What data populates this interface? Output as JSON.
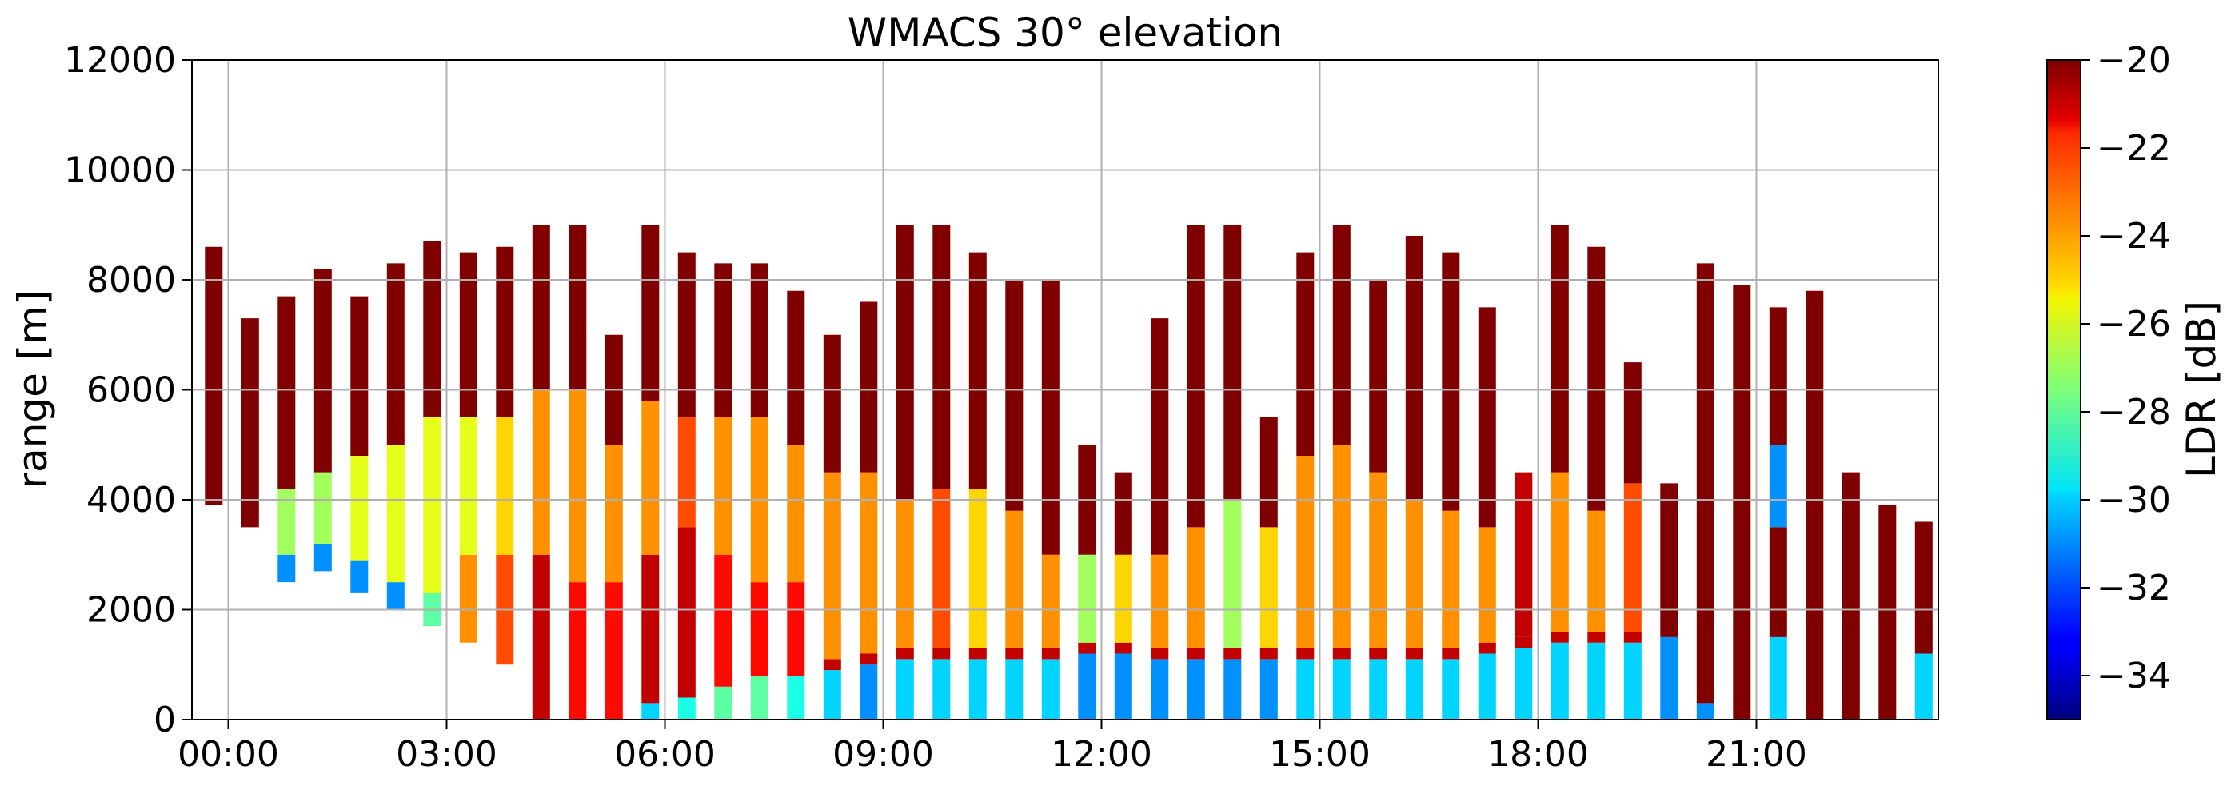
{
  "chart_data": {
    "type": "heatmap",
    "title": "WMACS 30° elevation",
    "xlabel": "",
    "ylabel": "range [m]",
    "ylim": [
      0,
      12000
    ],
    "xlim_hours": [
      -0.5,
      23.5
    ],
    "x_tick_labels": [
      "00:00",
      "03:00",
      "06:00",
      "09:00",
      "12:00",
      "15:00",
      "18:00",
      "21:00"
    ],
    "x_tick_hours": [
      0,
      3,
      6,
      9,
      12,
      15,
      18,
      21
    ],
    "y_ticks": [
      0,
      2000,
      4000,
      6000,
      8000,
      10000,
      12000
    ],
    "y_tick_labels": [
      "0",
      "2000",
      "4000",
      "6000",
      "8000",
      "10000",
      "12000"
    ],
    "grid": true,
    "colorbar": {
      "label": "LDR [dB]",
      "range": [
        -35,
        -20
      ],
      "ticks": [
        -20,
        -22,
        -24,
        -26,
        -28,
        -30,
        -32,
        -34
      ],
      "tick_labels": [
        "−20",
        "−22",
        "−24",
        "−26",
        "−28",
        "−30",
        "−32",
        "−34"
      ],
      "colormap": "jet"
    },
    "scans": [
      {
        "t": -0.2,
        "top": 8600,
        "bottom": 3900,
        "layers": [
          [
            3900,
            8600,
            -20
          ]
        ]
      },
      {
        "t": 0.3,
        "top": 7300,
        "bottom": 3500,
        "layers": [
          [
            3500,
            7300,
            -20
          ]
        ]
      },
      {
        "t": 0.8,
        "top": 7700,
        "bottom": 2500,
        "layers": [
          [
            2500,
            3000,
            -31
          ],
          [
            3000,
            4200,
            -27
          ],
          [
            4200,
            7700,
            -20
          ]
        ]
      },
      {
        "t": 1.3,
        "top": 8200,
        "bottom": 2700,
        "layers": [
          [
            2700,
            3200,
            -31
          ],
          [
            3200,
            4500,
            -27
          ],
          [
            4500,
            8200,
            -20
          ]
        ]
      },
      {
        "t": 1.8,
        "top": 7700,
        "bottom": 2300,
        "layers": [
          [
            2300,
            2900,
            -31
          ],
          [
            2900,
            4800,
            -26
          ],
          [
            4800,
            7700,
            -20
          ]
        ]
      },
      {
        "t": 2.3,
        "top": 8300,
        "bottom": 2000,
        "layers": [
          [
            2000,
            2500,
            -31
          ],
          [
            2500,
            5000,
            -26
          ],
          [
            5000,
            8300,
            -20
          ]
        ]
      },
      {
        "t": 2.8,
        "top": 8700,
        "bottom": 1700,
        "layers": [
          [
            1700,
            2300,
            -28
          ],
          [
            2300,
            5500,
            -26
          ],
          [
            5500,
            8700,
            -20
          ]
        ]
      },
      {
        "t": 3.3,
        "top": 8500,
        "bottom": 1400,
        "layers": [
          [
            1400,
            3000,
            -24
          ],
          [
            3000,
            5500,
            -26
          ],
          [
            5500,
            8500,
            -20
          ]
        ]
      },
      {
        "t": 3.8,
        "top": 8600,
        "bottom": 1000,
        "layers": [
          [
            1000,
            3000,
            -23
          ],
          [
            3000,
            5500,
            -25
          ],
          [
            5500,
            8600,
            -20
          ]
        ]
      },
      {
        "t": 4.3,
        "top": 9000,
        "bottom": 0,
        "layers": [
          [
            0,
            3000,
            -21
          ],
          [
            3000,
            6000,
            -24
          ],
          [
            6000,
            9000,
            -20
          ]
        ]
      },
      {
        "t": 4.8,
        "top": 9000,
        "bottom": 0,
        "layers": [
          [
            0,
            2500,
            -22
          ],
          [
            2500,
            6000,
            -24
          ],
          [
            6000,
            9000,
            -20
          ]
        ]
      },
      {
        "t": 5.3,
        "top": 7000,
        "bottom": 0,
        "layers": [
          [
            0,
            2500,
            -22
          ],
          [
            2500,
            5000,
            -24
          ],
          [
            5000,
            7000,
            -20
          ]
        ]
      },
      {
        "t": 5.8,
        "top": 9000,
        "bottom": 0,
        "layers": [
          [
            0,
            300,
            -30
          ],
          [
            300,
            3000,
            -21
          ],
          [
            3000,
            5800,
            -24
          ],
          [
            5800,
            9000,
            -20
          ]
        ]
      },
      {
        "t": 6.3,
        "top": 8500,
        "bottom": 0,
        "layers": [
          [
            0,
            400,
            -29
          ],
          [
            400,
            3500,
            -21
          ],
          [
            3500,
            5500,
            -23
          ],
          [
            5500,
            8500,
            -20
          ]
        ]
      },
      {
        "t": 6.8,
        "top": 8300,
        "bottom": 0,
        "layers": [
          [
            0,
            600,
            -28
          ],
          [
            600,
            3000,
            -22
          ],
          [
            3000,
            5500,
            -24
          ],
          [
            5500,
            8300,
            -20
          ]
        ]
      },
      {
        "t": 7.3,
        "top": 8300,
        "bottom": 0,
        "layers": [
          [
            0,
            800,
            -28
          ],
          [
            800,
            2500,
            -22
          ],
          [
            2500,
            5500,
            -24
          ],
          [
            5500,
            8300,
            -20
          ]
        ]
      },
      {
        "t": 7.8,
        "top": 7800,
        "bottom": 0,
        "layers": [
          [
            0,
            800,
            -29
          ],
          [
            800,
            2500,
            -22
          ],
          [
            2500,
            5000,
            -24
          ],
          [
            5000,
            7800,
            -20
          ]
        ]
      },
      {
        "t": 8.3,
        "top": 7000,
        "bottom": 0,
        "layers": [
          [
            0,
            900,
            -30
          ],
          [
            900,
            1100,
            -21
          ],
          [
            1100,
            4500,
            -24
          ],
          [
            4500,
            7000,
            -20
          ]
        ]
      },
      {
        "t": 8.8,
        "top": 7600,
        "bottom": 0,
        "layers": [
          [
            0,
            1000,
            -31
          ],
          [
            1000,
            1200,
            -21
          ],
          [
            1200,
            4500,
            -24
          ],
          [
            4500,
            7600,
            -20
          ]
        ]
      },
      {
        "t": 9.3,
        "top": 9000,
        "bottom": 0,
        "layers": [
          [
            0,
            1100,
            -30
          ],
          [
            1100,
            1300,
            -21
          ],
          [
            1300,
            4000,
            -24
          ],
          [
            4000,
            9000,
            -20
          ]
        ]
      },
      {
        "t": 9.8,
        "top": 9000,
        "bottom": 0,
        "layers": [
          [
            0,
            1100,
            -30
          ],
          [
            1100,
            1300,
            -21
          ],
          [
            1300,
            4200,
            -23
          ],
          [
            4200,
            9000,
            -20
          ]
        ]
      },
      {
        "t": 10.3,
        "top": 8500,
        "bottom": 0,
        "layers": [
          [
            0,
            1100,
            -30
          ],
          [
            1100,
            1300,
            -21
          ],
          [
            1300,
            4200,
            -25
          ],
          [
            4200,
            8500,
            -20
          ]
        ]
      },
      {
        "t": 10.8,
        "top": 8000,
        "bottom": 0,
        "layers": [
          [
            0,
            1100,
            -30
          ],
          [
            1100,
            1300,
            -21
          ],
          [
            1300,
            3800,
            -24
          ],
          [
            3800,
            8000,
            -20
          ]
        ]
      },
      {
        "t": 11.3,
        "top": 8000,
        "bottom": 0,
        "layers": [
          [
            0,
            1100,
            -30
          ],
          [
            1100,
            1300,
            -21
          ],
          [
            1300,
            3000,
            -24
          ],
          [
            3000,
            8000,
            -20
          ]
        ]
      },
      {
        "t": 11.8,
        "top": 5000,
        "bottom": 0,
        "layers": [
          [
            0,
            1200,
            -31
          ],
          [
            1200,
            1400,
            -21
          ],
          [
            1400,
            3000,
            -27
          ],
          [
            3000,
            5000,
            -20
          ]
        ]
      },
      {
        "t": 12.3,
        "top": 4500,
        "bottom": 0,
        "layers": [
          [
            0,
            1200,
            -31
          ],
          [
            1200,
            1400,
            -21
          ],
          [
            1400,
            3000,
            -25
          ],
          [
            3000,
            4500,
            -20
          ]
        ]
      },
      {
        "t": 12.8,
        "top": 7300,
        "bottom": 0,
        "layers": [
          [
            0,
            1100,
            -31
          ],
          [
            1100,
            1300,
            -21
          ],
          [
            1300,
            3000,
            -24
          ],
          [
            3000,
            7300,
            -20
          ]
        ]
      },
      {
        "t": 13.3,
        "top": 9000,
        "bottom": 0,
        "layers": [
          [
            0,
            1100,
            -31
          ],
          [
            1100,
            1300,
            -21
          ],
          [
            1300,
            3500,
            -24
          ],
          [
            3500,
            9000,
            -20
          ]
        ]
      },
      {
        "t": 13.8,
        "top": 9000,
        "bottom": 0,
        "layers": [
          [
            0,
            1100,
            -31
          ],
          [
            1100,
            1300,
            -21
          ],
          [
            1300,
            4000,
            -27
          ],
          [
            4000,
            9000,
            -20
          ]
        ]
      },
      {
        "t": 14.3,
        "top": 5500,
        "bottom": 0,
        "layers": [
          [
            0,
            1100,
            -31
          ],
          [
            1100,
            1300,
            -21
          ],
          [
            1300,
            3500,
            -25
          ],
          [
            3500,
            5500,
            -20
          ]
        ]
      },
      {
        "t": 14.8,
        "top": 8500,
        "bottom": 0,
        "layers": [
          [
            0,
            1100,
            -30
          ],
          [
            1100,
            1300,
            -21
          ],
          [
            1300,
            4800,
            -24
          ],
          [
            4800,
            8500,
            -20
          ]
        ]
      },
      {
        "t": 15.3,
        "top": 9000,
        "bottom": 0,
        "layers": [
          [
            0,
            1100,
            -30
          ],
          [
            1100,
            1300,
            -21
          ],
          [
            1300,
            5000,
            -24
          ],
          [
            5000,
            9000,
            -20
          ]
        ]
      },
      {
        "t": 15.8,
        "top": 8000,
        "bottom": 0,
        "layers": [
          [
            0,
            1100,
            -30
          ],
          [
            1100,
            1300,
            -21
          ],
          [
            1300,
            4500,
            -24
          ],
          [
            4500,
            8000,
            -20
          ]
        ]
      },
      {
        "t": 16.3,
        "top": 8800,
        "bottom": 0,
        "layers": [
          [
            0,
            1100,
            -30
          ],
          [
            1100,
            1300,
            -21
          ],
          [
            1300,
            4000,
            -24
          ],
          [
            4000,
            8800,
            -20
          ]
        ]
      },
      {
        "t": 16.8,
        "top": 8500,
        "bottom": 0,
        "layers": [
          [
            0,
            1100,
            -30
          ],
          [
            1100,
            1300,
            -21
          ],
          [
            1300,
            3800,
            -24
          ],
          [
            3800,
            8500,
            -20
          ]
        ]
      },
      {
        "t": 17.3,
        "top": 7500,
        "bottom": 0,
        "layers": [
          [
            0,
            1200,
            -30
          ],
          [
            1200,
            1400,
            -21
          ],
          [
            1400,
            3500,
            -24
          ],
          [
            3500,
            7500,
            -20
          ]
        ]
      },
      {
        "t": 17.8,
        "top": 4500,
        "bottom": 0,
        "layers": [
          [
            0,
            1300,
            -30
          ],
          [
            1300,
            1500,
            -21
          ],
          [
            1500,
            4500,
            -21
          ]
        ]
      },
      {
        "t": 18.3,
        "top": 9000,
        "bottom": 0,
        "layers": [
          [
            0,
            1400,
            -30
          ],
          [
            1400,
            1600,
            -21
          ],
          [
            1600,
            4500,
            -24
          ],
          [
            4500,
            9000,
            -20
          ]
        ]
      },
      {
        "t": 18.8,
        "top": 8600,
        "bottom": 0,
        "layers": [
          [
            0,
            1400,
            -30
          ],
          [
            1400,
            1600,
            -21
          ],
          [
            1600,
            3800,
            -24
          ],
          [
            3800,
            8600,
            -20
          ]
        ]
      },
      {
        "t": 19.3,
        "top": 6500,
        "bottom": 0,
        "layers": [
          [
            0,
            1400,
            -30
          ],
          [
            1400,
            1600,
            -21
          ],
          [
            1600,
            4300,
            -23
          ],
          [
            4300,
            6500,
            -20
          ]
        ]
      },
      {
        "t": 19.8,
        "top": 4300,
        "bottom": 0,
        "layers": [
          [
            0,
            1500,
            -31
          ],
          [
            1500,
            4300,
            -20
          ]
        ]
      },
      {
        "t": 20.3,
        "top": 8300,
        "bottom": 0,
        "layers": [
          [
            0,
            300,
            -31
          ],
          [
            300,
            8300,
            -20
          ]
        ]
      },
      {
        "t": 20.8,
        "top": 7900,
        "bottom": 0,
        "layers": [
          [
            0,
            7900,
            -20
          ]
        ]
      },
      {
        "t": 21.3,
        "top": 7500,
        "bottom": 0,
        "layers": [
          [
            0,
            1500,
            -30
          ],
          [
            1500,
            3500,
            -20
          ],
          [
            3500,
            5000,
            -31
          ],
          [
            5000,
            7500,
            -20
          ]
        ]
      },
      {
        "t": 21.8,
        "top": 7800,
        "bottom": 0,
        "layers": [
          [
            0,
            7800,
            -20
          ]
        ]
      },
      {
        "t": 22.3,
        "top": 4500,
        "bottom": 0,
        "layers": [
          [
            0,
            4500,
            -20
          ]
        ]
      },
      {
        "t": 22.8,
        "top": 3900,
        "bottom": 0,
        "layers": [
          [
            0,
            3900,
            -20
          ]
        ]
      },
      {
        "t": 23.3,
        "top": 3600,
        "bottom": 0,
        "layers": [
          [
            0,
            1200,
            -30
          ],
          [
            1200,
            3600,
            -20
          ]
        ]
      }
    ]
  }
}
